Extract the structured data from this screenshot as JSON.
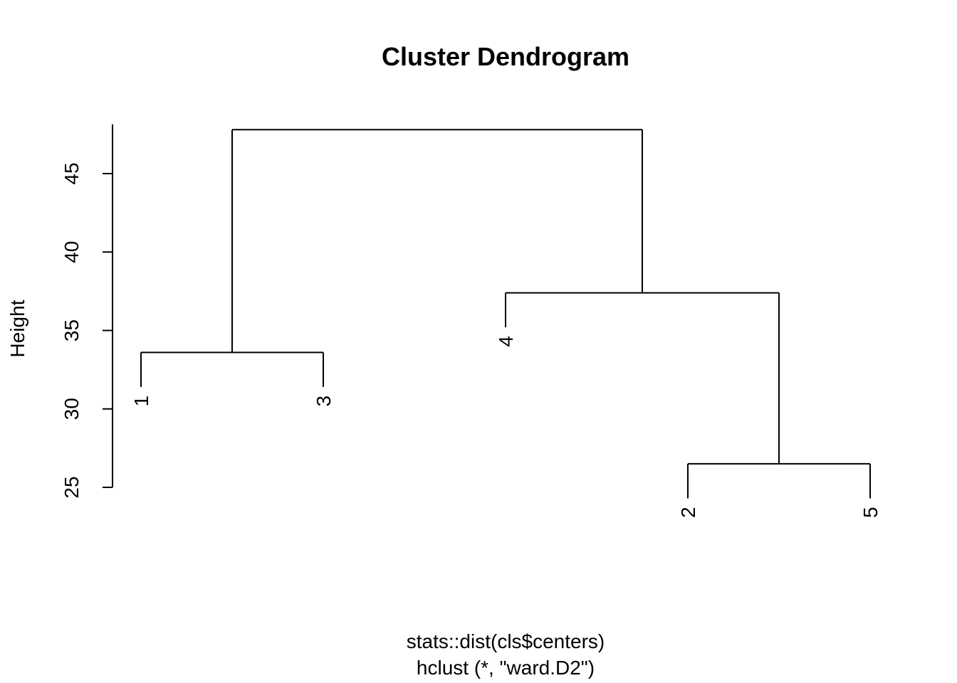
{
  "chart_data": {
    "type": "dendrogram",
    "title": "Cluster Dendrogram",
    "ylabel": "Height",
    "xlabel_lines": [
      "stats::dist(cls$centers)",
      "hclust (*, \"ward.D2\")"
    ],
    "ylim": [
      25,
      48
    ],
    "y_ticks": [
      25,
      30,
      35,
      40,
      45
    ],
    "leaf_order": [
      "1",
      "3",
      "4",
      "2",
      "5"
    ],
    "merges": [
      {
        "left": "2",
        "right": "5",
        "height": 26.5
      },
      {
        "left": "1",
        "right": "3",
        "height": 33.6
      },
      {
        "left": "4",
        "right": "2+5",
        "height": 37.4
      },
      {
        "left": "1+3",
        "right": "4+2+5",
        "height": 47.8
      }
    ],
    "hang": 2.2
  }
}
